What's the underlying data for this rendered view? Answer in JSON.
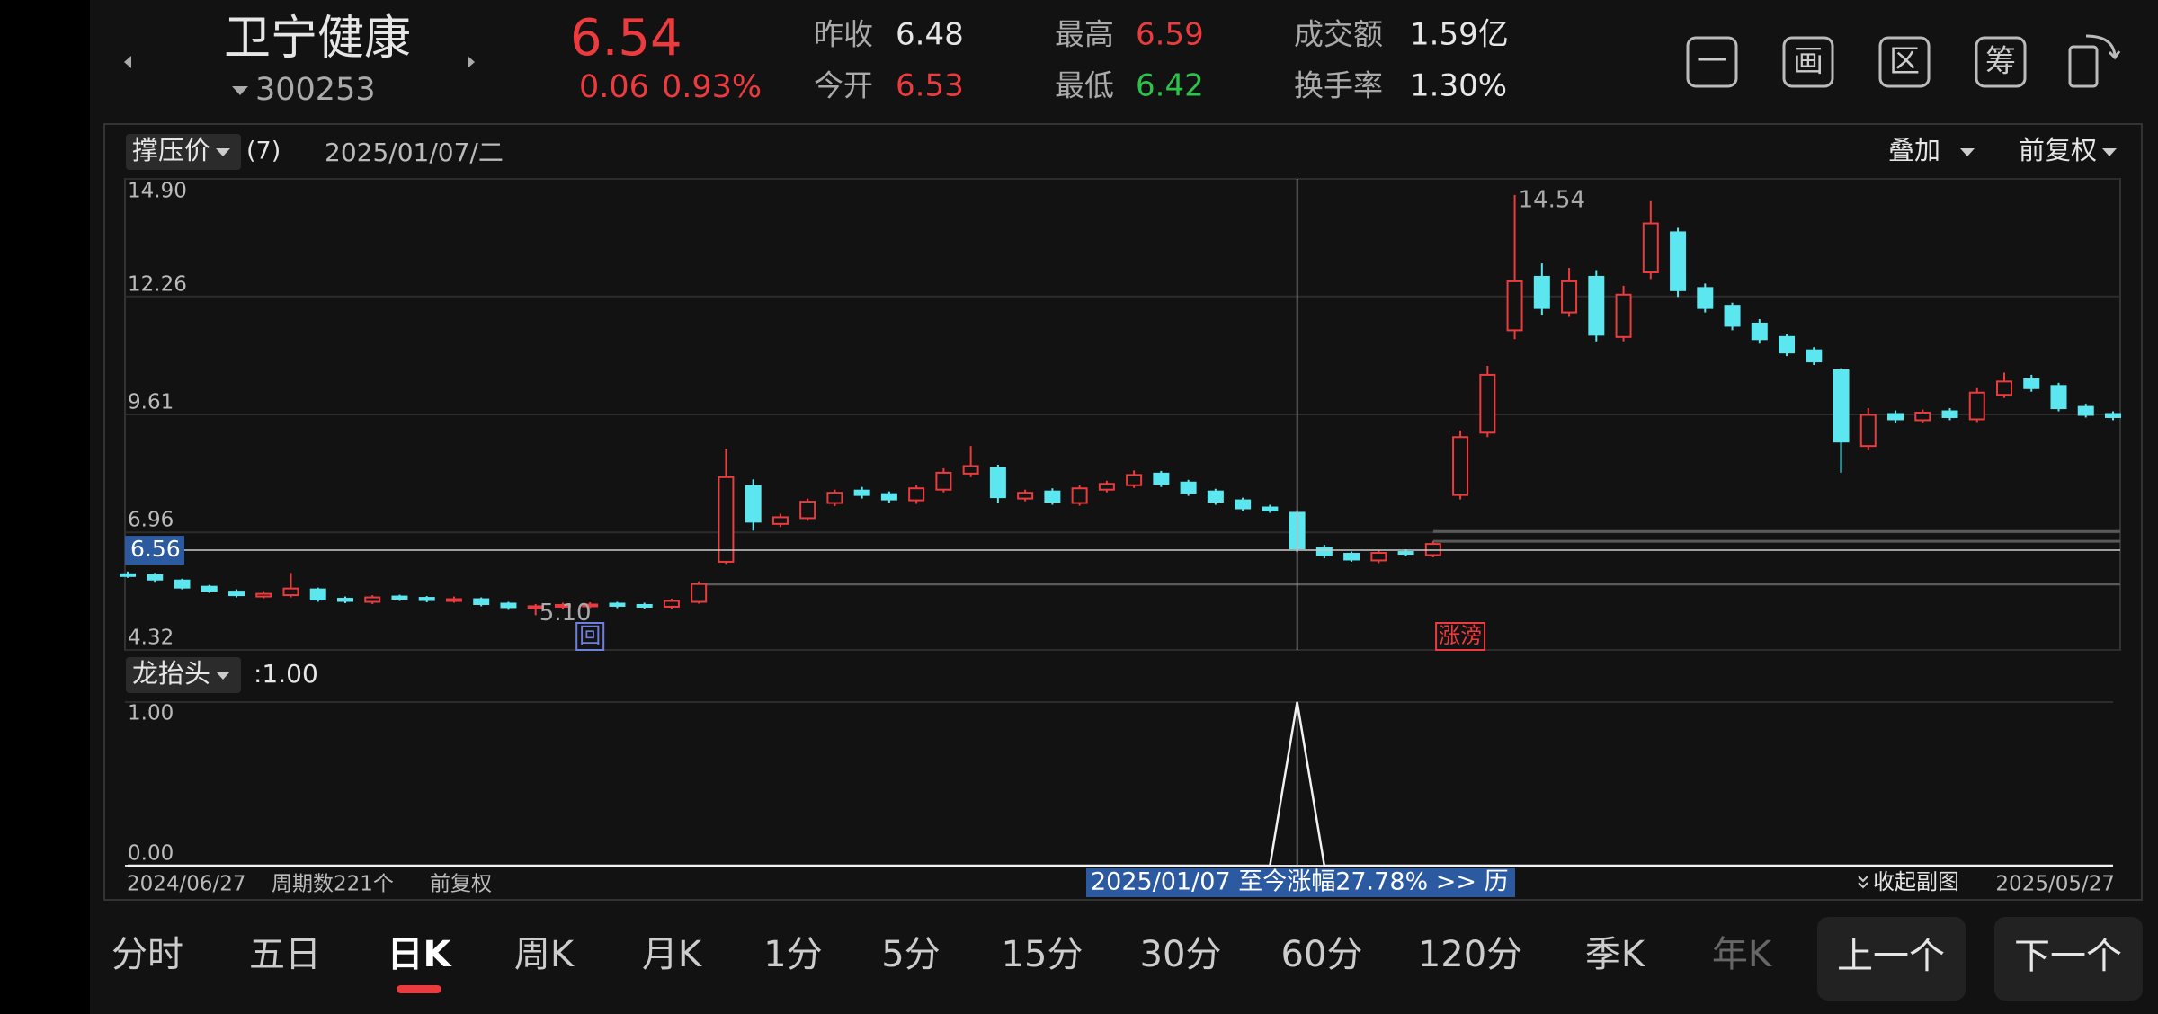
{
  "header": {
    "name": "卫宁健康",
    "code": "300253",
    "price": "6.54",
    "change": "0.06",
    "change_pct": "0.93%",
    "price_color": "#ec3b3e",
    "stats": [
      {
        "label": "昨收",
        "value": "6.48",
        "color": "#e6e6e6"
      },
      {
        "label": "今开",
        "value": "6.53",
        "color": "#ec3b3e"
      },
      {
        "label": "最高",
        "value": "6.59",
        "color": "#ec3b3e"
      },
      {
        "label": "最低",
        "value": "6.42",
        "color": "#2ec24b"
      },
      {
        "label": "成交额",
        "value": "1.59亿",
        "color": "#e6e6e6"
      },
      {
        "label": "换手率",
        "value": "1.30%",
        "color": "#e6e6e6"
      }
    ],
    "icons": [
      "一",
      "画",
      "区",
      "筹"
    ]
  },
  "chart_data": {
    "type": "candlestick",
    "indicator_menu": "撑压价",
    "indicator_param": "(7)",
    "cursor_date": "2025/01/07/二",
    "overlay": "叠加",
    "adjust": "前复权",
    "up_color": "#ec3b3e",
    "down_color": "#5ce6f0",
    "ylim": [
      4.32,
      14.9
    ],
    "yticks": [
      4.32,
      6.96,
      9.61,
      12.26,
      {
        "value": 14.9,
        "label": "14.90"
      }
    ],
    "grid": true,
    "open": [
      6.02,
      6.0,
      5.88,
      5.74,
      5.63,
      5.52,
      5.55,
      5.68,
      5.47,
      5.4,
      5.52,
      5.49,
      5.42,
      5.46,
      5.36,
      5.26,
      5.29,
      5.31,
      5.36,
      5.33,
      5.29,
      5.4,
      6.3,
      8.0,
      7.15,
      7.28,
      7.62,
      7.9,
      7.82,
      7.68,
      7.92,
      8.28,
      8.4,
      7.72,
      7.88,
      7.62,
      7.92,
      8.02,
      8.28,
      8.08,
      7.88,
      7.68,
      7.52,
      7.4,
      6.62,
      6.48,
      6.33,
      6.52,
      6.45,
      7.8,
      9.2,
      11.5,
      12.7,
      11.9,
      12.7,
      11.35,
      12.8,
      13.7,
      12.45,
      12.05,
      11.65,
      11.35,
      11.05,
      10.6,
      8.9,
      9.62,
      9.48,
      9.68,
      9.5,
      10.05,
      10.4,
      10.25,
      9.78,
      9.62
    ],
    "high": [
      6.08,
      6.05,
      5.92,
      5.78,
      5.68,
      5.64,
      6.05,
      5.72,
      5.52,
      5.55,
      5.56,
      5.53,
      5.52,
      5.5,
      5.4,
      5.35,
      5.38,
      5.39,
      5.4,
      5.38,
      5.47,
      5.86,
      8.84,
      8.15,
      7.38,
      7.72,
      7.92,
      7.98,
      7.88,
      8.02,
      8.4,
      8.9,
      8.48,
      7.92,
      7.95,
      8.02,
      8.12,
      8.35,
      8.34,
      8.14,
      7.94,
      7.74,
      7.58,
      7.46,
      6.68,
      6.53,
      6.56,
      6.58,
      6.76,
      9.25,
      10.7,
      14.54,
      13.0,
      12.9,
      12.85,
      12.5,
      14.4,
      13.8,
      12.55,
      12.12,
      11.75,
      11.42,
      11.12,
      10.65,
      9.75,
      9.7,
      9.72,
      9.75,
      10.2,
      10.55,
      10.5,
      10.32,
      9.85,
      9.68
    ],
    "low": [
      5.94,
      5.85,
      5.68,
      5.6,
      5.5,
      5.48,
      5.5,
      5.4,
      5.37,
      5.35,
      5.42,
      5.39,
      5.38,
      5.3,
      5.22,
      5.1,
      5.24,
      5.26,
      5.26,
      5.25,
      5.24,
      5.36,
      6.25,
      7.0,
      7.08,
      7.22,
      7.55,
      7.72,
      7.62,
      7.6,
      7.86,
      8.2,
      7.62,
      7.66,
      7.58,
      7.56,
      7.86,
      7.96,
      7.98,
      7.78,
      7.58,
      7.44,
      7.4,
      6.52,
      6.38,
      6.3,
      6.27,
      6.42,
      6.4,
      7.7,
      9.1,
      11.3,
      11.85,
      11.8,
      11.25,
      11.25,
      12.65,
      12.25,
      11.9,
      11.5,
      11.2,
      10.92,
      10.72,
      8.3,
      8.8,
      9.42,
      9.42,
      9.48,
      9.44,
      9.98,
      10.12,
      9.68,
      9.54,
      9.48
    ],
    "close": [
      5.99,
      5.9,
      5.72,
      5.65,
      5.55,
      5.58,
      5.7,
      5.45,
      5.42,
      5.5,
      5.47,
      5.44,
      5.46,
      5.35,
      5.28,
      5.3,
      5.33,
      5.34,
      5.31,
      5.3,
      5.42,
      5.8,
      8.2,
      7.2,
      7.3,
      7.65,
      7.85,
      7.8,
      7.7,
      7.95,
      8.3,
      8.45,
      7.75,
      7.85,
      7.65,
      7.95,
      8.05,
      8.25,
      8.05,
      7.85,
      7.65,
      7.5,
      7.45,
      6.6,
      6.45,
      6.35,
      6.5,
      6.48,
      6.7,
      9.1,
      10.5,
      12.6,
      12.0,
      12.6,
      11.4,
      12.3,
      13.9,
      12.4,
      12.0,
      11.6,
      11.3,
      11.0,
      10.8,
      9.0,
      9.6,
      9.5,
      9.65,
      9.55,
      10.1,
      10.35,
      10.2,
      9.75,
      9.6,
      9.55
    ],
    "levels": [
      {
        "value": 5.8,
        "start": 21
      },
      {
        "value": 6.76,
        "start": 48
      },
      {
        "value": 6.98,
        "start": 48
      }
    ],
    "crosshair": {
      "index": 43,
      "value": 6.56
    },
    "annotations": [
      {
        "index": 51,
        "label": "14.54"
      },
      {
        "index": 15,
        "label": "5.10"
      }
    ],
    "markers": [
      {
        "index": 17,
        "label": "回",
        "color": "#6f7fe0"
      },
      {
        "index": 49,
        "label": "涨滂",
        "color": "#ec3b3e"
      }
    ],
    "sub": {
      "name": "龙抬头",
      "value_label": ":1.00",
      "ylim": [
        0,
        1
      ],
      "yticks": [
        {
          "value": 0,
          "label": "0.00"
        },
        {
          "value": 1,
          "label": "1.00"
        }
      ],
      "values": [
        0,
        0,
        0,
        0,
        0,
        0,
        0,
        0,
        0,
        0,
        0,
        0,
        0,
        0,
        0,
        0,
        0,
        0,
        0,
        0,
        0,
        0,
        0,
        0,
        0,
        0,
        0,
        0,
        0,
        0,
        0,
        0,
        0,
        0,
        0,
        0,
        0,
        0,
        0,
        0,
        0,
        0,
        0,
        1,
        0,
        0,
        0,
        0,
        0,
        0,
        0,
        0,
        0,
        0,
        0,
        0,
        0,
        0,
        0,
        0,
        0,
        0,
        0,
        0,
        0,
        0,
        0,
        0,
        0,
        0,
        0,
        0,
        0,
        0
      ]
    },
    "start_date": "2024/06/27",
    "end_date": "2025/05/27",
    "period_count": "周期数221个",
    "banner": "2025/01/07 至今涨幅27.78% >> 历",
    "collapse": "收起副图"
  },
  "tabs": {
    "items": [
      "分时",
      "五日",
      "日K",
      "周K",
      "月K",
      "1分",
      "5分",
      "15分",
      "30分",
      "60分",
      "120分",
      "季K",
      "年K"
    ],
    "selected": 2
  },
  "buttons": [
    "上一个",
    "下一个"
  ]
}
